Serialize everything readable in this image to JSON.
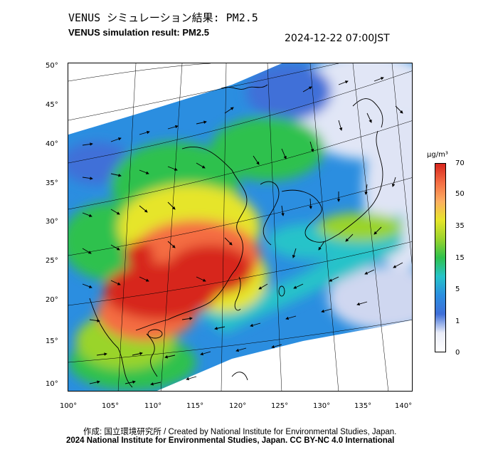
{
  "header": {
    "title_jp": "VENUS シミュレーション結果: PM2.5",
    "title_en": "VENUS simulation result: PM2.5",
    "timestamp": "2024-12-22 07:00JST"
  },
  "map": {
    "lat_ticks": [
      "50°",
      "45°",
      "40°",
      "35°",
      "30°",
      "25°",
      "20°",
      "15°",
      "10°"
    ],
    "lon_ticks": [
      "100°",
      "105°",
      "110°",
      "115°",
      "120°",
      "125°",
      "130°",
      "135°",
      "140°"
    ],
    "lat_range": [
      9,
      51
    ],
    "lon_range": [
      100,
      142
    ]
  },
  "colorbar": {
    "unit": "μg/m³",
    "labels": [
      "70",
      "50",
      "35",
      "15",
      "5",
      "1",
      "0"
    ],
    "colors": [
      "#d7261d",
      "#f46d43",
      "#fdae61",
      "#e6e52a",
      "#9ad42c",
      "#2ec14d",
      "#26c3c9",
      "#2b8ee0",
      "#3f6fd8",
      "#e9ecf8",
      "#ffffff"
    ]
  },
  "footer": {
    "credit": "作成: 国立環境研究所 / Created by National Institute for Environmental Studies, Japan.",
    "copyright": "2024 National Institute for Environmental Studies, Japan. CC BY-NC 4.0 International"
  }
}
